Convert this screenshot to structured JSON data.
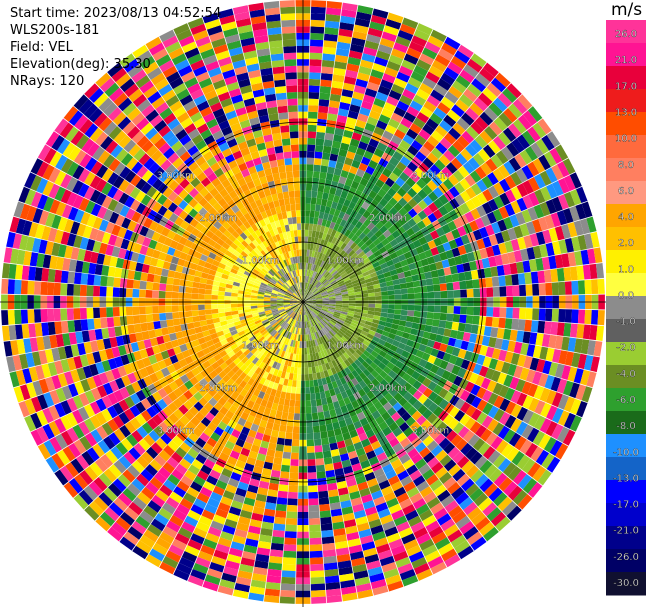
{
  "header": {
    "start_time": "Start time: 2023/08/13 04:52:54",
    "instrument": "WLS200s-181",
    "field": "Field: VEL",
    "elevation": "Elevation(deg): 35.30",
    "nrays": "NRays: 120"
  },
  "chart_data": {
    "type": "heatmap",
    "projection": "PPI",
    "n_rays": 120,
    "elevation_deg": 35.3,
    "range_rings_km": [
      1.0,
      2.0,
      3.0
    ],
    "ring_labels": {
      "1": "1.00km",
      "2": "2.00km",
      "3": "3.00km"
    },
    "colorbar": {
      "unit": "m/s",
      "tick_labels": [
        "26.0",
        "21.0",
        "17.0",
        "13.0",
        "10.0",
        "8.0",
        "6.0",
        "4.0",
        "2.0",
        "1.0",
        "0.0",
        "-1.0",
        "-2.0",
        "-4.0",
        "-6.0",
        "-8.0",
        "-10.0",
        "-13.0",
        "-17.0",
        "-21.0",
        "-26.0",
        "-30.0"
      ],
      "colors": [
        "#ff3399",
        "#ff1493",
        "#e8003b",
        "#ee1c1c",
        "#ff4d00",
        "#ff6a3d",
        "#ff7f60",
        "#ff9980",
        "#ffa500",
        "#ffc000",
        "#fff000",
        "#ffff40",
        "#8c8c8c",
        "#606060",
        "#9acd32",
        "#6b8e23",
        "#2ea02e",
        "#1a6b1a",
        "#1e90ff",
        "#1464c8",
        "#0000ff",
        "#0000cc",
        "#00008b",
        "#000066",
        "#101030"
      ]
    },
    "pattern": {
      "near_field": "gray/green/yellow mottled",
      "west_sector": "yellow to orange (positive)",
      "east_sector": "green (negative)",
      "far_field": "noisy multicolor"
    }
  }
}
